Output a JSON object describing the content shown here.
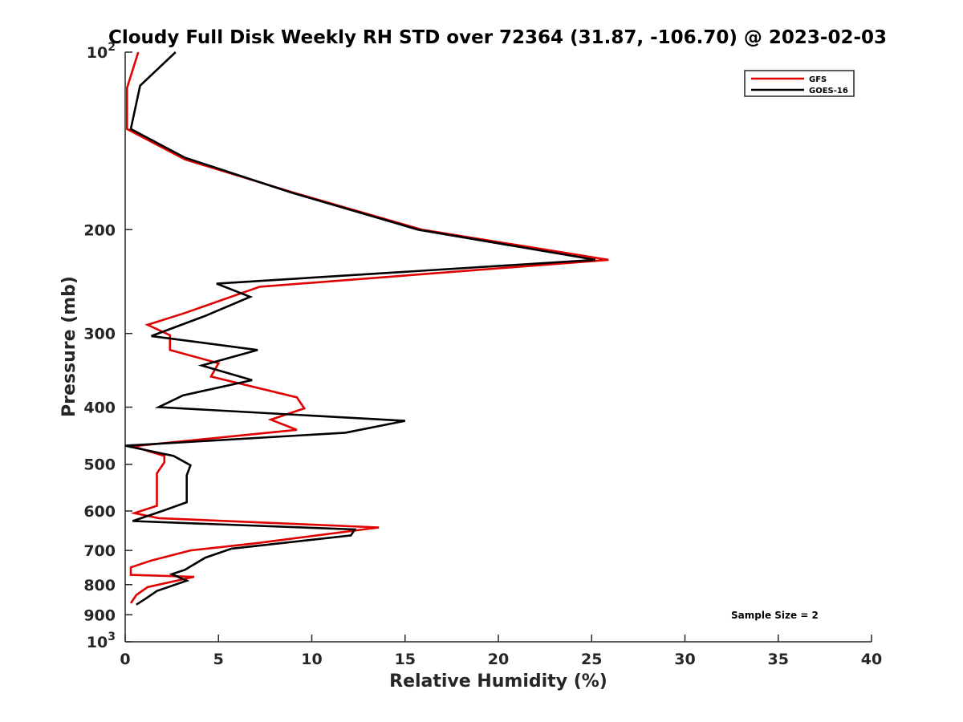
{
  "chart_data": {
    "type": "line",
    "title": "Cloudy Full Disk Weekly RH STD over 72364 (31.87, -106.70) @ 2023-02-03",
    "xlabel": "Relative Humidity (%)",
    "ylabel": "Pressure (mb)",
    "xlim": [
      0,
      40
    ],
    "ylim": [
      100,
      1000
    ],
    "yscale": "log",
    "y_reversed": true,
    "x_ticks": [
      "0",
      "5",
      "10",
      "15",
      "20",
      "25",
      "30",
      "35",
      "40"
    ],
    "y_ticks": [
      {
        "value": 100,
        "base": "10",
        "exp": "2"
      },
      {
        "value": 200,
        "label": "200"
      },
      {
        "value": 300,
        "label": "300"
      },
      {
        "value": 400,
        "label": "400"
      },
      {
        "value": 500,
        "label": "500"
      },
      {
        "value": 600,
        "label": "600"
      },
      {
        "value": 700,
        "label": "700"
      },
      {
        "value": 800,
        "label": "800"
      },
      {
        "value": 900,
        "label": "900"
      },
      {
        "value": 1000,
        "base": "10",
        "exp": "3"
      }
    ],
    "legend_position": "top-right",
    "grid": false,
    "series": [
      {
        "name": "GFS",
        "color": "#e00000",
        "points": [
          [
            0.7,
            100
          ],
          [
            0.1,
            115
          ],
          [
            0.1,
            135
          ],
          [
            3.2,
            152
          ],
          [
            9.0,
            173
          ],
          [
            15.9,
            200
          ],
          [
            25.9,
            225
          ],
          [
            7.2,
            250
          ],
          [
            3.2,
            277
          ],
          [
            1.2,
            290
          ],
          [
            2.4,
            302
          ],
          [
            2.4,
            320
          ],
          [
            5.0,
            337
          ],
          [
            4.6,
            355
          ],
          [
            9.2,
            385
          ],
          [
            9.6,
            402
          ],
          [
            7.8,
            420
          ],
          [
            9.2,
            437
          ],
          [
            0.4,
            466
          ],
          [
            2.1,
            484
          ],
          [
            2.1,
            496
          ],
          [
            1.7,
            518
          ],
          [
            1.7,
            588
          ],
          [
            0.5,
            605
          ],
          [
            1.8,
            617
          ],
          [
            13.6,
            640
          ],
          [
            7.1,
            680
          ],
          [
            3.5,
            700
          ],
          [
            1.4,
            728
          ],
          [
            0.3,
            748
          ],
          [
            0.3,
            770
          ],
          [
            3.7,
            776
          ],
          [
            1.2,
            808
          ],
          [
            0.6,
            833
          ],
          [
            0.3,
            860
          ]
        ]
      },
      {
        "name": "GOES-16",
        "color": "#000000",
        "points": [
          [
            2.7,
            100
          ],
          [
            0.8,
            114
          ],
          [
            0.3,
            135
          ],
          [
            3.2,
            151
          ],
          [
            8.9,
            173
          ],
          [
            15.7,
            200
          ],
          [
            25.2,
            225
          ],
          [
            4.9,
            247
          ],
          [
            6.7,
            260
          ],
          [
            4.3,
            280
          ],
          [
            1.4,
            303
          ],
          [
            7.1,
            320
          ],
          [
            4.1,
            340
          ],
          [
            6.8,
            360
          ],
          [
            3.1,
            382
          ],
          [
            1.8,
            400
          ],
          [
            15.0,
            422
          ],
          [
            11.8,
            442
          ],
          [
            0.0,
            465
          ],
          [
            2.6,
            484
          ],
          [
            3.5,
            502
          ],
          [
            3.3,
            522
          ],
          [
            3.3,
            580
          ],
          [
            2.0,
            600
          ],
          [
            0.4,
            624
          ],
          [
            12.3,
            645
          ],
          [
            12.1,
            660
          ],
          [
            5.7,
            695
          ],
          [
            4.3,
            720
          ],
          [
            3.2,
            755
          ],
          [
            2.5,
            768
          ],
          [
            3.3,
            788
          ],
          [
            1.7,
            820
          ],
          [
            1.1,
            845
          ],
          [
            0.6,
            865
          ]
        ]
      }
    ],
    "annotation": "Sample Size = 2"
  }
}
